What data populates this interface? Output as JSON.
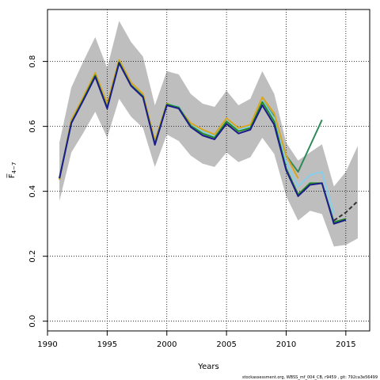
{
  "chart_data": {
    "type": "line",
    "title": "",
    "xlabel": "Years",
    "ylabel": "F̅",
    "ylabel_sub": "4−7",
    "xlim": [
      1990,
      2017
    ],
    "ylim": [
      -0.03,
      0.96
    ],
    "xticks": [
      1990,
      1995,
      2000,
      2005,
      2010,
      2015
    ],
    "yticks": [
      0.0,
      0.2,
      0.4,
      0.6,
      0.8
    ],
    "ytick_labels": [
      "0.0",
      "0.2",
      "0.4",
      "0.6",
      "0.8"
    ],
    "grid": true,
    "legend": "none",
    "band_color": "#bebebe",
    "confidence_band": {
      "x": [
        1991,
        1992,
        1993,
        1994,
        1995,
        1996,
        1997,
        1998,
        1999,
        2000,
        2001,
        2002,
        2003,
        2004,
        2005,
        2006,
        2007,
        2008,
        2009,
        2010,
        2011,
        2012,
        2013,
        2014,
        2015,
        2016
      ],
      "lower": [
        0.37,
        0.52,
        0.58,
        0.645,
        0.565,
        0.685,
        0.63,
        0.595,
        0.475,
        0.575,
        0.555,
        0.51,
        0.485,
        0.475,
        0.52,
        0.49,
        0.505,
        0.565,
        0.515,
        0.385,
        0.31,
        0.34,
        0.33,
        0.23,
        0.235,
        0.255
      ],
      "upper": [
        0.55,
        0.72,
        0.8,
        0.875,
        0.78,
        0.925,
        0.86,
        0.815,
        0.665,
        0.77,
        0.76,
        0.7,
        0.67,
        0.66,
        0.71,
        0.665,
        0.685,
        0.77,
        0.7,
        0.55,
        0.495,
        0.52,
        0.545,
        0.415,
        0.46,
        0.54
      ]
    },
    "series": [
      {
        "color": "#2e8b57",
        "dashed": false,
        "x": [
          1991,
          1992,
          1993,
          1994,
          1995,
          1996,
          1997,
          1998,
          1999,
          2000,
          2001,
          2002,
          2003,
          2004,
          2005,
          2006,
          2007,
          2008,
          2009,
          2010,
          2011,
          2012,
          2013
        ],
        "y": [
          0.44,
          0.615,
          0.685,
          0.76,
          0.66,
          0.8,
          0.73,
          0.695,
          0.55,
          0.67,
          0.66,
          0.605,
          0.585,
          0.57,
          0.62,
          0.59,
          0.6,
          0.68,
          0.63,
          0.51,
          0.46,
          0.54,
          0.62
        ]
      },
      {
        "color": "#87ceeb",
        "dashed": false,
        "x": [
          1991,
          1992,
          1993,
          1994,
          1995,
          1996,
          1997,
          1998,
          1999,
          2000,
          2001,
          2002,
          2003,
          2004,
          2005,
          2006,
          2007,
          2008,
          2009,
          2010,
          2011,
          2012,
          2013,
          2014
        ],
        "y": [
          0.44,
          0.615,
          0.685,
          0.76,
          0.66,
          0.8,
          0.73,
          0.695,
          0.55,
          0.67,
          0.66,
          0.605,
          0.585,
          0.57,
          0.62,
          0.59,
          0.6,
          0.68,
          0.625,
          0.49,
          0.415,
          0.45,
          0.46,
          0.33
        ]
      },
      {
        "color": "#daa520",
        "dashed": false,
        "x": [
          1991,
          1992,
          1993,
          1994,
          1995,
          1996,
          1997,
          1998,
          1999,
          2000,
          2001,
          2002,
          2003,
          2004,
          2005,
          2006,
          2007,
          2008,
          2009,
          2010,
          2011
        ],
        "y": [
          0.435,
          0.62,
          0.69,
          0.765,
          0.67,
          0.805,
          0.735,
          0.7,
          0.555,
          0.67,
          0.655,
          0.61,
          0.59,
          0.575,
          0.625,
          0.595,
          0.605,
          0.69,
          0.64,
          0.51,
          0.44
        ]
      },
      {
        "color": "#228b22",
        "dashed": false,
        "x": [
          1991,
          1992,
          1993,
          1994,
          1995,
          1996,
          1997,
          1998,
          1999,
          2000,
          2001,
          2002,
          2003,
          2004,
          2005,
          2006,
          2007,
          2008,
          2009,
          2010,
          2011,
          2012,
          2013,
          2014,
          2015
        ],
        "y": [
          0.44,
          0.612,
          0.683,
          0.757,
          0.658,
          0.798,
          0.727,
          0.693,
          0.546,
          0.668,
          0.658,
          0.602,
          0.578,
          0.565,
          0.615,
          0.585,
          0.595,
          0.675,
          0.615,
          0.47,
          0.39,
          0.425,
          0.425,
          0.305,
          0.315
        ]
      },
      {
        "color": "#1c1c8c",
        "dashed": false,
        "x": [
          1991,
          1992,
          1993,
          1994,
          1995,
          1996,
          1997,
          1998,
          1999,
          2000,
          2001,
          2002,
          2003,
          2004,
          2005,
          2006,
          2007,
          2008,
          2009,
          2010,
          2011,
          2012,
          2013,
          2014,
          2015
        ],
        "y": [
          0.44,
          0.61,
          0.68,
          0.753,
          0.655,
          0.795,
          0.725,
          0.69,
          0.543,
          0.665,
          0.655,
          0.598,
          0.572,
          0.56,
          0.608,
          0.578,
          0.59,
          0.665,
          0.605,
          0.465,
          0.385,
          0.42,
          0.425,
          0.3,
          0.312
        ]
      },
      {
        "color": "#333333",
        "dashed": true,
        "x": [
          2014,
          2015,
          2016
        ],
        "y": [
          0.31,
          0.335,
          0.37
        ]
      }
    ],
    "footer": "stockassessment.org, WBSS_mf_004_CB, r9459 , git: 792ca3e56499"
  }
}
